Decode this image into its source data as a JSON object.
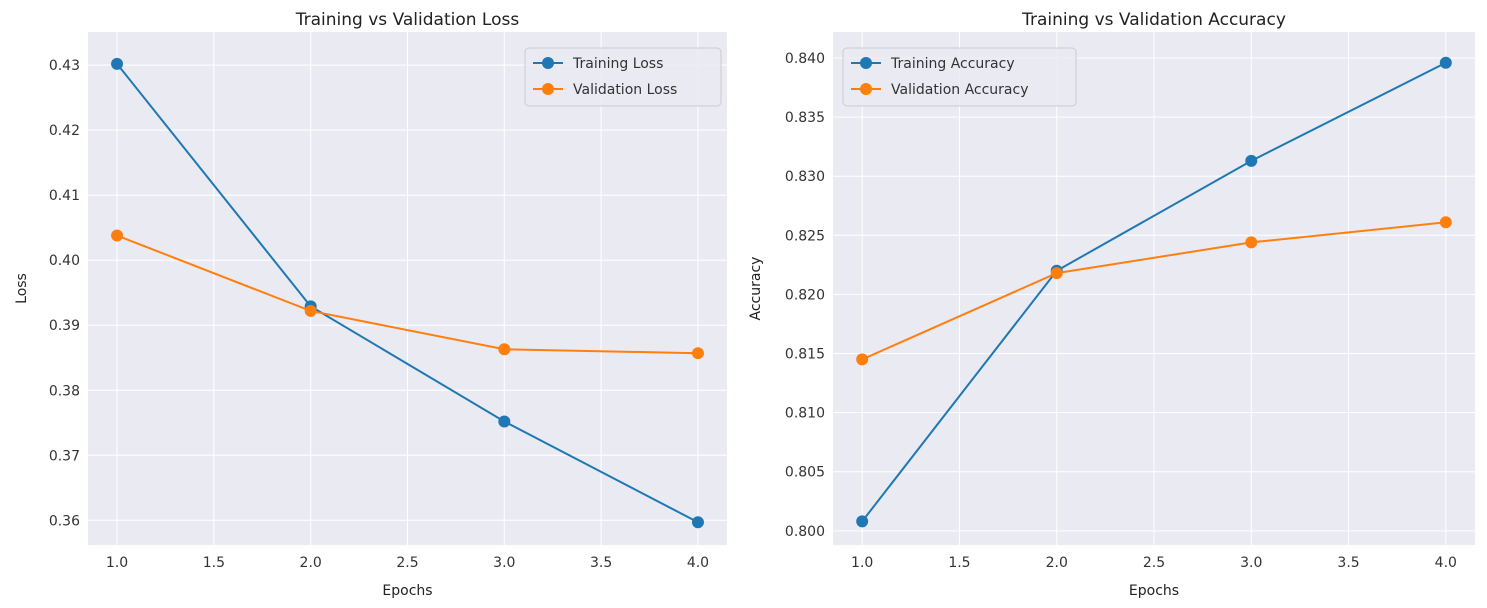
{
  "chart_data": [
    {
      "type": "line",
      "title": "Training vs Validation Loss",
      "xlabel": "Epochs",
      "ylabel": "Loss",
      "x": [
        1,
        2,
        3,
        4
      ],
      "xlim": [
        0.85,
        4.15
      ],
      "ylim": [
        0.3562,
        0.4351
      ],
      "xticks": [
        "1.0",
        "1.5",
        "2.0",
        "2.5",
        "3.0",
        "3.5",
        "4.0"
      ],
      "yticks": [
        "0.36",
        "0.37",
        "0.38",
        "0.39",
        "0.40",
        "0.41",
        "0.42",
        "0.43"
      ],
      "grid": true,
      "legend": "top-right",
      "series": [
        {
          "name": "Training Loss",
          "values": [
            0.4302,
            0.3929,
            0.3752,
            0.3597
          ],
          "color": "#1f77b4"
        },
        {
          "name": "Validation Loss",
          "values": [
            0.4038,
            0.3922,
            0.3863,
            0.3857
          ],
          "color": "#ff7f0e"
        }
      ]
    },
    {
      "type": "line",
      "title": "Training vs Validation Accuracy",
      "xlabel": "Epochs",
      "ylabel": "Accuracy",
      "x": [
        1,
        2,
        3,
        4
      ],
      "xlim": [
        0.85,
        4.15
      ],
      "ylim": [
        0.7988,
        0.8422
      ],
      "xticks": [
        "1.0",
        "1.5",
        "2.0",
        "2.5",
        "3.0",
        "3.5",
        "4.0"
      ],
      "yticks": [
        "0.800",
        "0.805",
        "0.810",
        "0.815",
        "0.820",
        "0.825",
        "0.830",
        "0.835",
        "0.840"
      ],
      "grid": true,
      "legend": "top-left",
      "series": [
        {
          "name": "Training Accuracy",
          "values": [
            0.8008,
            0.822,
            0.8313,
            0.8396
          ],
          "color": "#1f77b4"
        },
        {
          "name": "Validation Accuracy",
          "values": [
            0.8145,
            0.8218,
            0.8244,
            0.8261
          ],
          "color": "#ff7f0e"
        }
      ]
    }
  ]
}
